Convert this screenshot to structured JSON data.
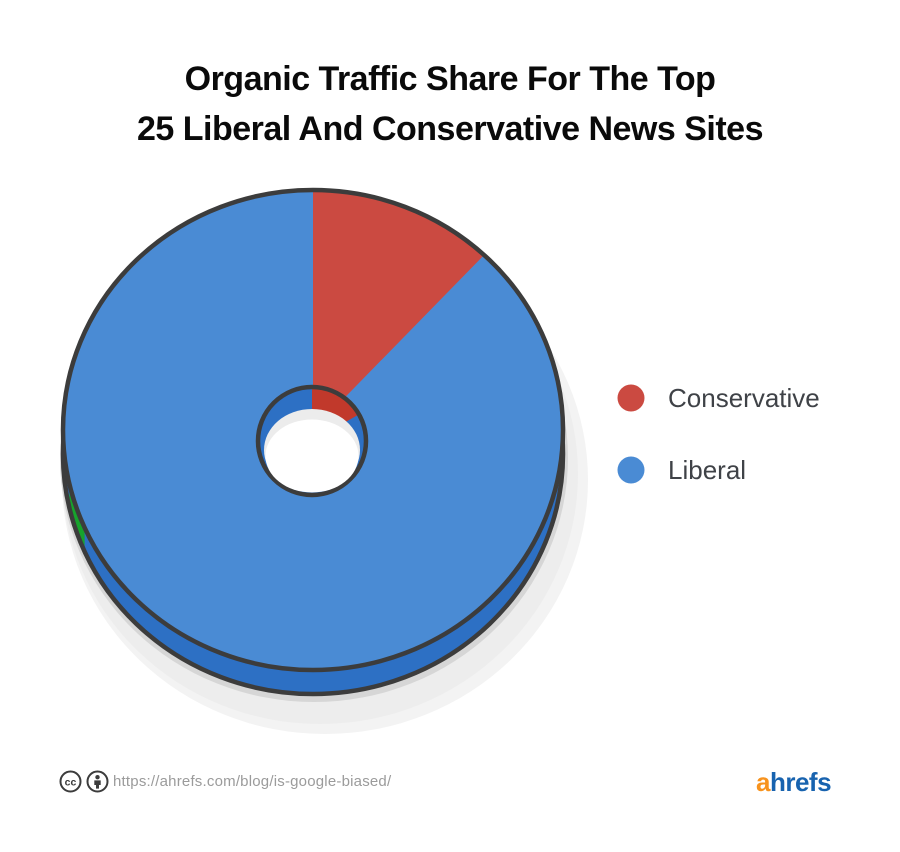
{
  "title": {
    "line1": "Organic Traffic Share For The Top",
    "line2": "25 Liberal And Conservative News Sites"
  },
  "chart_data": {
    "type": "pie",
    "style": "3d-donut",
    "title": "Organic Traffic Share For The Top 25 Liberal And Conservative News Sites",
    "categories": [
      "Conservative",
      "Liberal"
    ],
    "values": [
      12,
      88
    ],
    "values_unit": "percent (estimated from slice angles; no numeric labels shown in image)",
    "start_angle_deg": 0,
    "direction": "clockwise",
    "legend_position": "right",
    "legend": [
      {
        "label": "Conservative",
        "color": "#cb4a41"
      },
      {
        "label": "Liberal",
        "color": "#4a8bd4"
      }
    ],
    "colors": {
      "conservative_top": "#cb4a41",
      "conservative_wall": "#c1392b",
      "liberal_top": "#4a8bd4",
      "liberal_wall": "#2d70c4",
      "outline": "#3c3c3c",
      "stray_green_sliver": "#17a32c",
      "shadow": "#ededed",
      "shadow_edge": "#d6d6d6",
      "hole_shade": "#ececec",
      "hole_fill": "#ffffff"
    }
  },
  "footer": {
    "url": "https://ahrefs.com/blog/is-google-biased/",
    "icons": [
      "cc-icon",
      "attribution-icon"
    ],
    "logo": {
      "prefix": "a",
      "rest": "hrefs",
      "prefix_color": "#f7931e",
      "rest_color": "#1863af"
    }
  }
}
